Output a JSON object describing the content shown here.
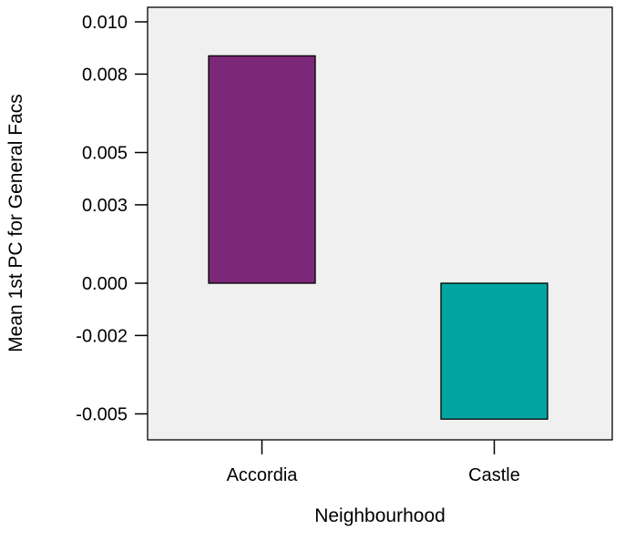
{
  "chart_data": {
    "type": "bar",
    "categories": [
      "Accordia",
      "Castle"
    ],
    "values": [
      0.0087,
      -0.0052
    ],
    "xlabel": "Neighbourhood",
    "ylabel": "Mean 1st PC for General Facs",
    "yticks": [
      0.01,
      0.008,
      0.005,
      0.003,
      0.0,
      -0.002,
      -0.005
    ],
    "ytick_labels": [
      "0.010",
      "0.008",
      "0.005",
      "0.003",
      "0.000",
      "-0.002",
      "-0.005"
    ],
    "ylim": [
      -0.006,
      0.0105
    ],
    "grid": false,
    "legend": "none",
    "bar_colors": [
      "#7b2879",
      "#00a5a2"
    ],
    "plot_background": "#f0f0f0"
  }
}
